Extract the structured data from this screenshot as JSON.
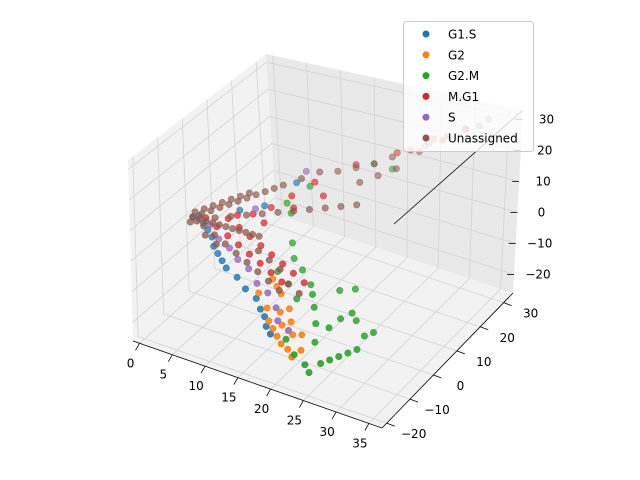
{
  "chart_data": {
    "type": "scatter",
    "projection": "3d",
    "title": "",
    "xlabel": "",
    "ylabel": "",
    "zlabel": "",
    "xlim": [
      -1,
      37
    ],
    "ylim": [
      -22,
      34
    ],
    "zlim": [
      -26,
      33
    ],
    "x_ticks": [
      0,
      5,
      10,
      15,
      20,
      25,
      30,
      35
    ],
    "y_ticks": [
      -20,
      -10,
      0,
      10,
      20,
      30
    ],
    "z_ticks": [
      -20,
      -10,
      0,
      10,
      20,
      30
    ],
    "grid": true,
    "legend_position": "top-right",
    "series": [
      {
        "name": "G1.S",
        "color": "#1f77b4",
        "points": [
          [
            0,
            0,
            0
          ],
          [
            1,
            0,
            1
          ],
          [
            2,
            -1,
            0
          ],
          [
            3,
            -2,
            -1
          ],
          [
            4,
            -3,
            -2
          ],
          [
            5,
            -5,
            -3
          ],
          [
            6,
            -6,
            -4
          ],
          [
            7,
            -7,
            -5
          ],
          [
            8,
            -8,
            -6
          ],
          [
            10,
            -9,
            -7
          ],
          [
            12,
            -11,
            -8
          ],
          [
            14,
            -12,
            -9
          ],
          [
            15,
            -13,
            -11
          ],
          [
            16,
            -14,
            -12
          ],
          [
            17,
            -16,
            -13
          ],
          [
            18,
            -17,
            -14
          ],
          [
            6,
            3,
            4
          ],
          [
            9,
            5,
            6
          ],
          [
            33,
            31,
            30
          ],
          [
            12,
            10,
            12
          ]
        ]
      },
      {
        "name": "G2",
        "color": "#ff7f0e",
        "points": [
          [
            14,
            -11,
            -8
          ],
          [
            16,
            -13,
            -10
          ],
          [
            17,
            -15,
            -12
          ],
          [
            18,
            -16,
            -13
          ],
          [
            19,
            -17,
            -14
          ],
          [
            20,
            -18,
            -15
          ],
          [
            21,
            -18,
            -16
          ],
          [
            19,
            -15,
            -12
          ],
          [
            18,
            -13,
            -10
          ],
          [
            22,
            -19,
            -17
          ],
          [
            23,
            -18,
            -15
          ],
          [
            17,
            -10,
            -7
          ],
          [
            20,
            -14,
            -11
          ],
          [
            16,
            -9,
            -6
          ],
          [
            21,
            -16,
            -13
          ],
          [
            15,
            -8,
            -5
          ],
          [
            22,
            -15,
            -13
          ],
          [
            19,
            -12,
            -9
          ]
        ]
      },
      {
        "name": "G2.M",
        "color": "#2ca02c",
        "points": [
          [
            20,
            -16,
            -15
          ],
          [
            22,
            -18,
            -17
          ],
          [
            24,
            -19,
            -18
          ],
          [
            25,
            -20,
            -19
          ],
          [
            26,
            -18,
            -17
          ],
          [
            27,
            -17,
            -16
          ],
          [
            28,
            -16,
            -15
          ],
          [
            29,
            -15,
            -14
          ],
          [
            30,
            -14,
            -13
          ],
          [
            24,
            -15,
            -14
          ],
          [
            23,
            -12,
            -11
          ],
          [
            25,
            -12,
            -11
          ],
          [
            26,
            -10,
            -9
          ],
          [
            27,
            -8,
            -8
          ],
          [
            22,
            -10,
            -8
          ],
          [
            21,
            -8,
            -6
          ],
          [
            20,
            -6,
            -5
          ],
          [
            18,
            -4,
            -3
          ],
          [
            16,
            -2,
            -2
          ],
          [
            24,
            -5,
            -5
          ],
          [
            26,
            -4,
            -4
          ],
          [
            28,
            -9,
            -9
          ],
          [
            30,
            -11,
            -11
          ],
          [
            31,
            -10,
            -10
          ],
          [
            19,
            -9,
            -8
          ],
          [
            17,
            -7,
            -6
          ],
          [
            15,
            0,
            1
          ],
          [
            12,
            6,
            8
          ],
          [
            14,
            10,
            12
          ],
          [
            20,
            20,
            16
          ],
          [
            22,
            22,
            14
          ],
          [
            13,
            5,
            6
          ],
          [
            15,
            -6,
            -4
          ]
        ]
      },
      {
        "name": "M.G1",
        "color": "#d62728",
        "points": [
          [
            2,
            0,
            1
          ],
          [
            4,
            -1,
            0
          ],
          [
            6,
            -2,
            -1
          ],
          [
            8,
            -3,
            -2
          ],
          [
            10,
            -4,
            -3
          ],
          [
            12,
            -5,
            -4
          ],
          [
            14,
            -6,
            -5
          ],
          [
            16,
            -7,
            -6
          ],
          [
            5,
            1,
            2
          ],
          [
            7,
            0,
            1
          ],
          [
            9,
            -1,
            0
          ],
          [
            11,
            -2,
            -1
          ],
          [
            13,
            -3,
            -2
          ],
          [
            15,
            -4,
            -3
          ],
          [
            17,
            -5,
            -4
          ],
          [
            19,
            -6,
            -5
          ],
          [
            8,
            3,
            4
          ],
          [
            10,
            5,
            6
          ],
          [
            12,
            8,
            9
          ],
          [
            14,
            12,
            12
          ],
          [
            18,
            18,
            16
          ],
          [
            22,
            24,
            18
          ],
          [
            26,
            28,
            22
          ],
          [
            28,
            26,
            24
          ],
          [
            30,
            30,
            26
          ],
          [
            6,
            2,
            3
          ],
          [
            10,
            2,
            3
          ],
          [
            13,
            6,
            7
          ],
          [
            16,
            10,
            10
          ]
        ]
      },
      {
        "name": "S",
        "color": "#9467bd",
        "points": [
          [
            3,
            -1,
            0
          ],
          [
            5,
            -3,
            -2
          ],
          [
            7,
            -4,
            -3
          ],
          [
            9,
            -6,
            -4
          ],
          [
            11,
            -7,
            -5
          ],
          [
            13,
            -9,
            -7
          ],
          [
            15,
            -10,
            -8
          ],
          [
            17,
            -12,
            -10
          ],
          [
            18,
            -14,
            -12
          ],
          [
            20,
            -15,
            -13
          ],
          [
            8,
            4,
            5
          ],
          [
            12,
            14,
            13
          ],
          [
            25,
            27,
            20
          ]
        ]
      },
      {
        "name": "Unassigned",
        "color": "#8c564b",
        "points": [
          [
            0,
            0,
            0
          ],
          [
            0,
            1,
            1
          ],
          [
            1,
            1,
            1
          ],
          [
            1,
            2,
            2
          ],
          [
            2,
            2,
            2
          ],
          [
            2,
            3,
            3
          ],
          [
            3,
            3,
            3
          ],
          [
            3,
            4,
            4
          ],
          [
            4,
            4,
            4
          ],
          [
            4,
            5,
            5
          ],
          [
            5,
            5,
            5
          ],
          [
            5,
            6,
            6
          ],
          [
            6,
            6,
            6
          ],
          [
            6,
            7,
            7
          ],
          [
            7,
            7,
            7
          ],
          [
            8,
            8,
            8
          ],
          [
            9,
            9,
            9
          ],
          [
            10,
            10,
            10
          ],
          [
            1,
            0,
            0
          ],
          [
            2,
            0,
            0
          ],
          [
            3,
            0,
            0
          ],
          [
            4,
            0,
            0
          ],
          [
            5,
            0,
            0
          ],
          [
            6,
            0,
            0
          ],
          [
            7,
            0,
            0
          ],
          [
            8,
            0,
            0
          ],
          [
            9,
            0,
            0
          ],
          [
            10,
            0,
            0
          ],
          [
            2,
            -1,
            -1
          ],
          [
            4,
            -2,
            -2
          ],
          [
            6,
            -3,
            -3
          ],
          [
            8,
            -4,
            -4
          ],
          [
            10,
            -5,
            -5
          ],
          [
            12,
            -6,
            -6
          ],
          [
            14,
            -7,
            -7
          ],
          [
            16,
            -8,
            -8
          ],
          [
            3,
            1,
            1
          ],
          [
            5,
            2,
            2
          ],
          [
            7,
            3,
            3
          ],
          [
            9,
            4,
            4
          ],
          [
            11,
            5,
            5
          ],
          [
            13,
            6,
            6
          ],
          [
            15,
            7,
            7
          ],
          [
            17,
            8,
            8
          ],
          [
            19,
            9,
            9
          ],
          [
            21,
            10,
            10
          ],
          [
            12,
            12,
            12
          ],
          [
            14,
            14,
            14
          ],
          [
            16,
            16,
            14
          ],
          [
            18,
            18,
            15
          ],
          [
            20,
            20,
            16
          ],
          [
            22,
            22,
            18
          ],
          [
            24,
            24,
            20
          ],
          [
            26,
            26,
            22
          ],
          [
            28,
            28,
            24
          ],
          [
            30,
            30,
            26
          ],
          [
            32,
            30,
            28
          ],
          [
            20,
            14,
            14
          ],
          [
            22,
            16,
            16
          ],
          [
            24,
            18,
            18
          ],
          [
            26,
            22,
            22
          ],
          [
            11,
            -3,
            -2
          ],
          [
            13,
            -4,
            -3
          ],
          [
            15,
            -5,
            -4
          ],
          [
            17,
            -7,
            -6
          ],
          [
            19,
            -8,
            -7
          ],
          [
            1,
            -1,
            0
          ],
          [
            0,
            -1,
            -1
          ],
          [
            3,
            -3,
            -2
          ],
          [
            5,
            -4,
            -3
          ]
        ]
      }
    ]
  }
}
